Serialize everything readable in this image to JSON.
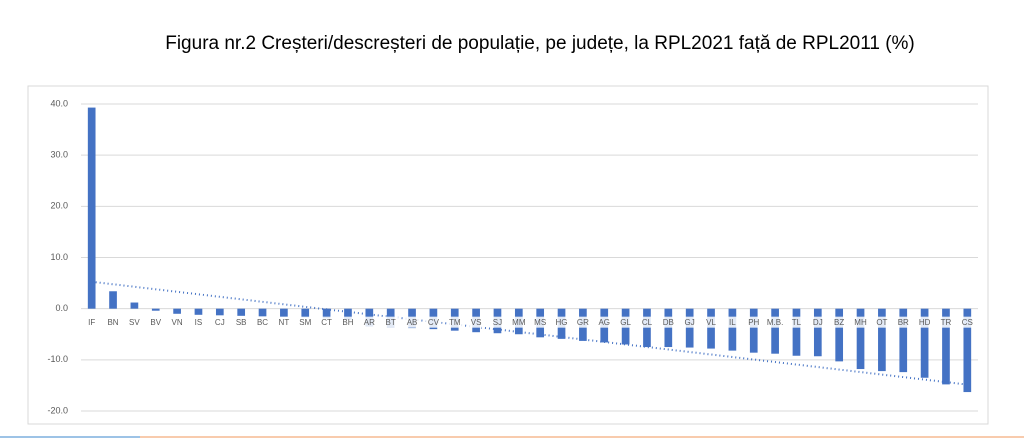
{
  "chart_data": {
    "type": "bar",
    "title": "Figura nr.2 Creșteri/descreșteri de populație, pe județe, la RPL2021 față de RPL2011 (%)",
    "categories": [
      "IF",
      "BN",
      "SV",
      "BV",
      "VN",
      "IS",
      "CJ",
      "SB",
      "BC",
      "NT",
      "SM",
      "CT",
      "BH",
      "AR",
      "BT",
      "AB",
      "CV",
      "TM",
      "VS",
      "SJ",
      "MM",
      "MS",
      "HG",
      "GR",
      "AG",
      "GL",
      "CL",
      "DB",
      "GJ",
      "VL",
      "IL",
      "PH",
      "M.B.",
      "TL",
      "DJ",
      "BZ",
      "MH",
      "OT",
      "BR",
      "HD",
      "TR",
      "CS"
    ],
    "values": [
      39.3,
      3.4,
      1.2,
      -0.4,
      -1.0,
      -1.2,
      -1.3,
      -1.4,
      -1.5,
      -1.6,
      -1.7,
      -1.9,
      -2.2,
      -3.5,
      -3.7,
      -3.8,
      -4.0,
      -4.3,
      -4.6,
      -4.8,
      -5.0,
      -5.6,
      -5.9,
      -6.3,
      -6.6,
      -7.0,
      -7.5,
      -7.5,
      -7.6,
      -7.8,
      -8.2,
      -8.6,
      -8.8,
      -9.2,
      -9.3,
      -10.3,
      -11.8,
      -12.2,
      -12.4,
      -13.5,
      -14.8,
      -16.3
    ],
    "color": "#4472c4",
    "ylim": [
      -20,
      40
    ],
    "yticks": [
      {
        "value": -20,
        "label": "-20.0"
      },
      {
        "value": -10,
        "label": "-10.0"
      },
      {
        "value": 0,
        "label": "0.0"
      },
      {
        "value": 10,
        "label": "10.0"
      },
      {
        "value": 20,
        "label": "20.0"
      },
      {
        "value": 30,
        "label": "30.0"
      },
      {
        "value": 40,
        "label": "40.0"
      }
    ],
    "grid": true,
    "trendline": "linear"
  }
}
